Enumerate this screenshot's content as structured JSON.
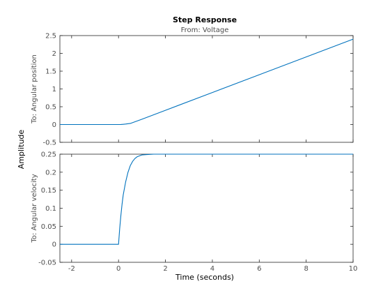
{
  "chart_data": {
    "type": "line",
    "title": "Step Response",
    "subtitle": "From: Voltage",
    "xlabel": "Time (seconds)",
    "ylabel": "Amplitude",
    "xlim": [
      -2.5,
      10
    ],
    "grid": false,
    "colors": {
      "line": "#0072bd",
      "axes": "#262626",
      "tick_text": "#4d4d4d"
    },
    "x_ticks": [
      -2,
      0,
      2,
      4,
      6,
      8,
      10
    ],
    "x_tick_labels": [
      "-2",
      "0",
      "2",
      "4",
      "6",
      "8",
      "10"
    ],
    "subplots": [
      {
        "ylabel": "To: Angular position",
        "ylim": [
          -0.5,
          2.5
        ],
        "y_ticks": [
          -0.5,
          0,
          0.5,
          1,
          1.5,
          2,
          2.5
        ],
        "y_tick_labels": [
          "-0.5",
          "0",
          "0.5",
          "1",
          "1.5",
          "2",
          "2.5"
        ],
        "series": [
          {
            "x": [
              -2.5,
              0,
              0.1,
              0.2,
              0.3,
              0.5,
              1,
              2,
              4,
              6,
              8,
              10
            ],
            "y": [
              0,
              0,
              0.002,
              0.007,
              0.013,
              0.03,
              0.15,
              0.4,
              0.9,
              1.4,
              1.9,
              2.4
            ]
          }
        ]
      },
      {
        "ylabel": "To: Angular velocity",
        "ylim": [
          -0.05,
          0.25
        ],
        "y_ticks": [
          -0.05,
          0,
          0.05,
          0.1,
          0.15,
          0.2,
          0.25
        ],
        "y_tick_labels": [
          "-0.05",
          "0",
          "0.05",
          "0.1",
          "0.15",
          "0.2",
          "0.25"
        ],
        "series": [
          {
            "x": [
              -2.5,
              0,
              0.05,
              0.1,
              0.15,
              0.2,
              0.3,
              0.4,
              0.5,
              0.6,
              0.7,
              0.8,
              1,
              1.2,
              1.5,
              2,
              10
            ],
            "y": [
              0,
              0,
              0.044,
              0.08,
              0.111,
              0.137,
              0.172,
              0.199,
              0.218,
              0.23,
              0.238,
              0.243,
              0.248,
              0.249,
              0.25,
              0.25,
              0.25
            ]
          }
        ]
      }
    ]
  }
}
